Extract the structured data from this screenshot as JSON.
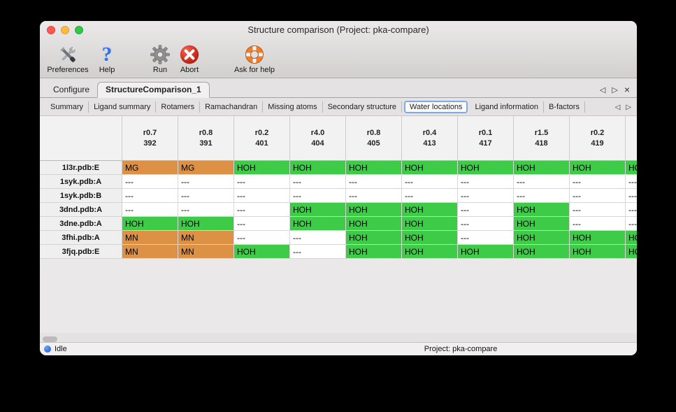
{
  "window": {
    "title": "Structure comparison (Project: pka-compare)"
  },
  "icons": {
    "question_mark": "?",
    "prev": "◁",
    "next": "▷",
    "close": "×"
  },
  "toolbar": {
    "items": [
      {
        "label": "Preferences",
        "icon": "tools-icon"
      },
      {
        "label": "Help",
        "icon": "question-mark-icon"
      },
      {
        "label": "Run",
        "icon": "gear-icon"
      },
      {
        "label": "Abort",
        "icon": "abort-icon"
      },
      {
        "label": "Ask for help",
        "icon": "lifebuoy-icon"
      }
    ]
  },
  "tabs": {
    "primary": [
      {
        "label": "Configure",
        "selected": false
      },
      {
        "label": "StructureComparison_1",
        "selected": true
      }
    ],
    "secondary": [
      "Summary",
      "Ligand summary",
      "Rotamers",
      "Ramachandran",
      "Missing atoms",
      "Secondary structure",
      "Water locations",
      "Ligand information",
      "B-factors"
    ],
    "secondary_selected": "Water locations"
  },
  "table": {
    "columns": [
      {
        "line1": "r0.7",
        "line2": "392"
      },
      {
        "line1": "r0.8",
        "line2": "391"
      },
      {
        "line1": "r0.2",
        "line2": "401"
      },
      {
        "line1": "r4.0",
        "line2": "404"
      },
      {
        "line1": "r0.8",
        "line2": "405"
      },
      {
        "line1": "r0.4",
        "line2": "413"
      },
      {
        "line1": "r0.1",
        "line2": "417"
      },
      {
        "line1": "r1.5",
        "line2": "418"
      },
      {
        "line1": "r0.2",
        "line2": "419"
      },
      {
        "line1": "",
        "line2": ""
      }
    ],
    "rows": [
      {
        "label": "1l3r.pdb:E",
        "cells": [
          "MG",
          "MG",
          "HOH",
          "HOH",
          "HOH",
          "HOH",
          "HOH",
          "HOH",
          "HOH",
          "HOH"
        ]
      },
      {
        "label": "1syk.pdb:A",
        "cells": [
          "---",
          "---",
          "---",
          "---",
          "---",
          "---",
          "---",
          "---",
          "---",
          "---"
        ]
      },
      {
        "label": "1syk.pdb:B",
        "cells": [
          "---",
          "---",
          "---",
          "---",
          "---",
          "---",
          "---",
          "---",
          "---",
          "---"
        ]
      },
      {
        "label": "3dnd.pdb:A",
        "cells": [
          "---",
          "---",
          "---",
          "HOH",
          "HOH",
          "HOH",
          "---",
          "HOH",
          "---",
          "---"
        ]
      },
      {
        "label": "3dne.pdb:A",
        "cells": [
          "HOH",
          "HOH",
          "---",
          "HOH",
          "HOH",
          "HOH",
          "---",
          "HOH",
          "---",
          "---"
        ]
      },
      {
        "label": "3fhi.pdb:A",
        "cells": [
          "MN",
          "MN",
          "---",
          "---",
          "HOH",
          "HOH",
          "---",
          "HOH",
          "HOH",
          "HOH"
        ]
      },
      {
        "label": "3fjq.pdb:E",
        "cells": [
          "MN",
          "MN",
          "HOH",
          "---",
          "HOH",
          "HOH",
          "HOH",
          "HOH",
          "HOH",
          "HOH"
        ]
      }
    ],
    "cell_colors": {
      "HOH": "#3ecc48",
      "MG": "#dc9144",
      "MN": "#dc9144",
      "---": "#ffffff"
    }
  },
  "statusbar": {
    "status": "Idle",
    "project": "Project: pka-compare"
  },
  "colors": {
    "water_green": "#3ecc48",
    "metal_orange": "#dc9144",
    "tab_focus_blue": "#7faae8",
    "status_dot_blue": "#1d63e0"
  }
}
